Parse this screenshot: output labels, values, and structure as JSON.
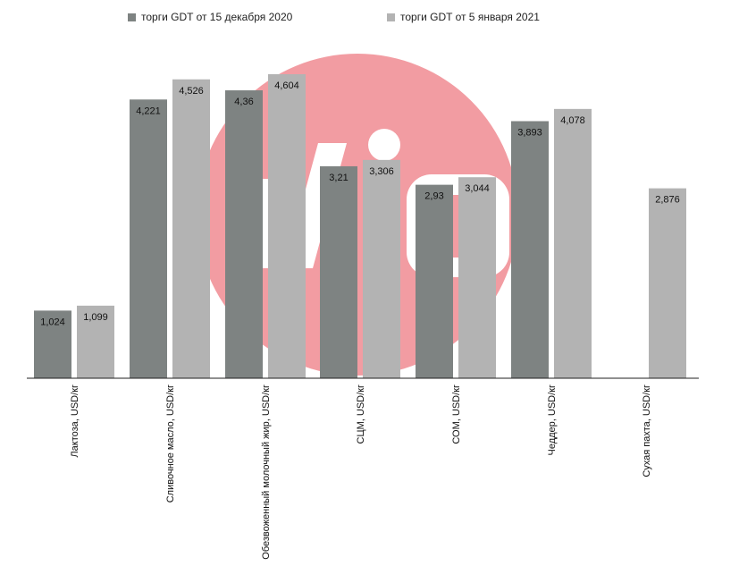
{
  "chart_data": {
    "type": "bar",
    "categories": [
      "Лактоза,  USD/кг",
      "Сливочное масло, USD/кг",
      "Обезвоженный молочный жир, USD/кг",
      "СЦМ, USD/кг",
      "СОМ, USD/кг",
      "Чеддер, USD/кг",
      "Сухая пахта, USD/кг"
    ],
    "series": [
      {
        "name": "торги GDT от 15 декабря 2020",
        "values": [
          1.024,
          4.221,
          4.36,
          3.21,
          2.93,
          3.893,
          null
        ],
        "labels": [
          "1,024",
          "4,221",
          "4,36",
          "3,21",
          "2,93",
          "3,893",
          ""
        ]
      },
      {
        "name": "торги GDT от 5 января 2021",
        "values": [
          1.099,
          4.526,
          4.604,
          3.306,
          3.044,
          4.078,
          2.876
        ],
        "labels": [
          "1,099",
          "4,526",
          "4,604",
          "3,306",
          "3,044",
          "4,078",
          "2,876"
        ]
      }
    ],
    "ylim": [
      0,
      4.604
    ],
    "grid": false,
    "legend": "top",
    "colors": [
      "#7e8382",
      "#b3b3b3"
    ]
  },
  "watermark": {
    "color": "#f29ca2"
  }
}
